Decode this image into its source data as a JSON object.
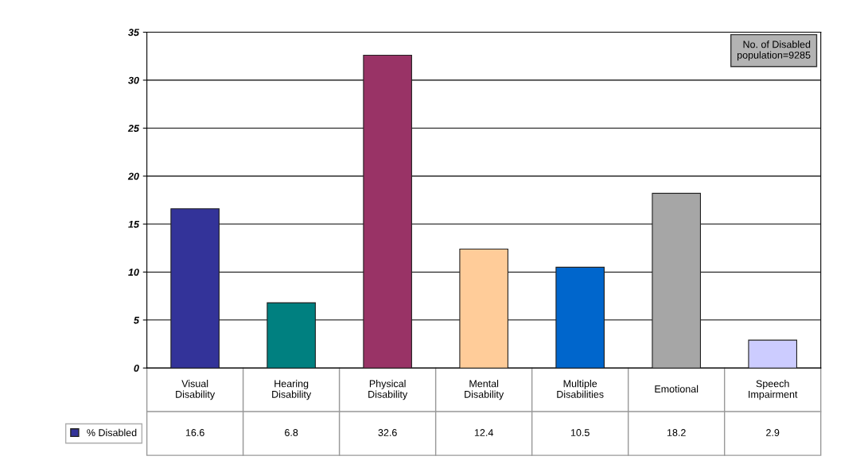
{
  "chart_data": {
    "type": "bar",
    "categories": [
      "Visual\nDisability",
      "Hearing\nDisability",
      "Physical\nDisability",
      "Mental\nDisability",
      "Multiple\nDisabilities",
      "Emotional",
      "Speech\nImpairment"
    ],
    "series": [
      {
        "name": "% Disabled",
        "color": "#333399",
        "values": [
          16.6,
          6.8,
          32.6,
          12.4,
          10.5,
          18.2,
          2.9
        ],
        "colors": [
          "#333399",
          "#008080",
          "#993366",
          "#ffcc99",
          "#0066cc",
          "#a6a6a6",
          "#ccccff"
        ]
      }
    ],
    "ylim": [
      0,
      35
    ],
    "yticks": [
      0,
      5,
      10,
      15,
      20,
      25,
      30,
      35
    ],
    "grid": "y",
    "data_labels": true,
    "legend": "bottom left",
    "annotations": [
      "No. of Disabled\npopulation=9285"
    ]
  }
}
